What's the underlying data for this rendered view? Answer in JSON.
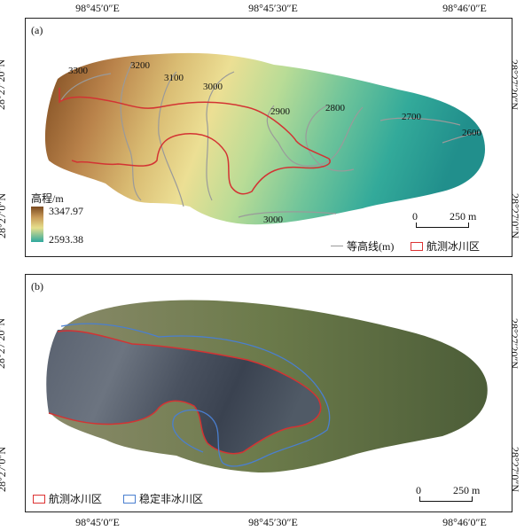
{
  "coords": {
    "lon": [
      "98°45′0″E",
      "98°45′30″E",
      "98°46′0″E"
    ],
    "lat": [
      "28°27′20″N",
      "28°27′0″N"
    ]
  },
  "panel_a": {
    "label": "(a)",
    "elevation_title": "高程/m",
    "elevation_max": "3347.97",
    "elevation_min": "2593.38",
    "contours": [
      "3300",
      "3200",
      "3100",
      "3000",
      "2900",
      "2800",
      "2700",
      "2600",
      "3000"
    ],
    "legend_contour": "等高线(m)",
    "legend_glacier": "航测冰川区",
    "scale": {
      "zero": "0",
      "length": "250 m"
    }
  },
  "panel_b": {
    "label": "(b)",
    "legend_glacier": "航测冰川区",
    "legend_stable": "稳定非冰川区",
    "scale": {
      "zero": "0",
      "length": "250 m"
    }
  },
  "colors": {
    "glacier_outline": "#d33333",
    "stable_outline": "#4a7fd0",
    "contour": "#9a9a9a"
  }
}
